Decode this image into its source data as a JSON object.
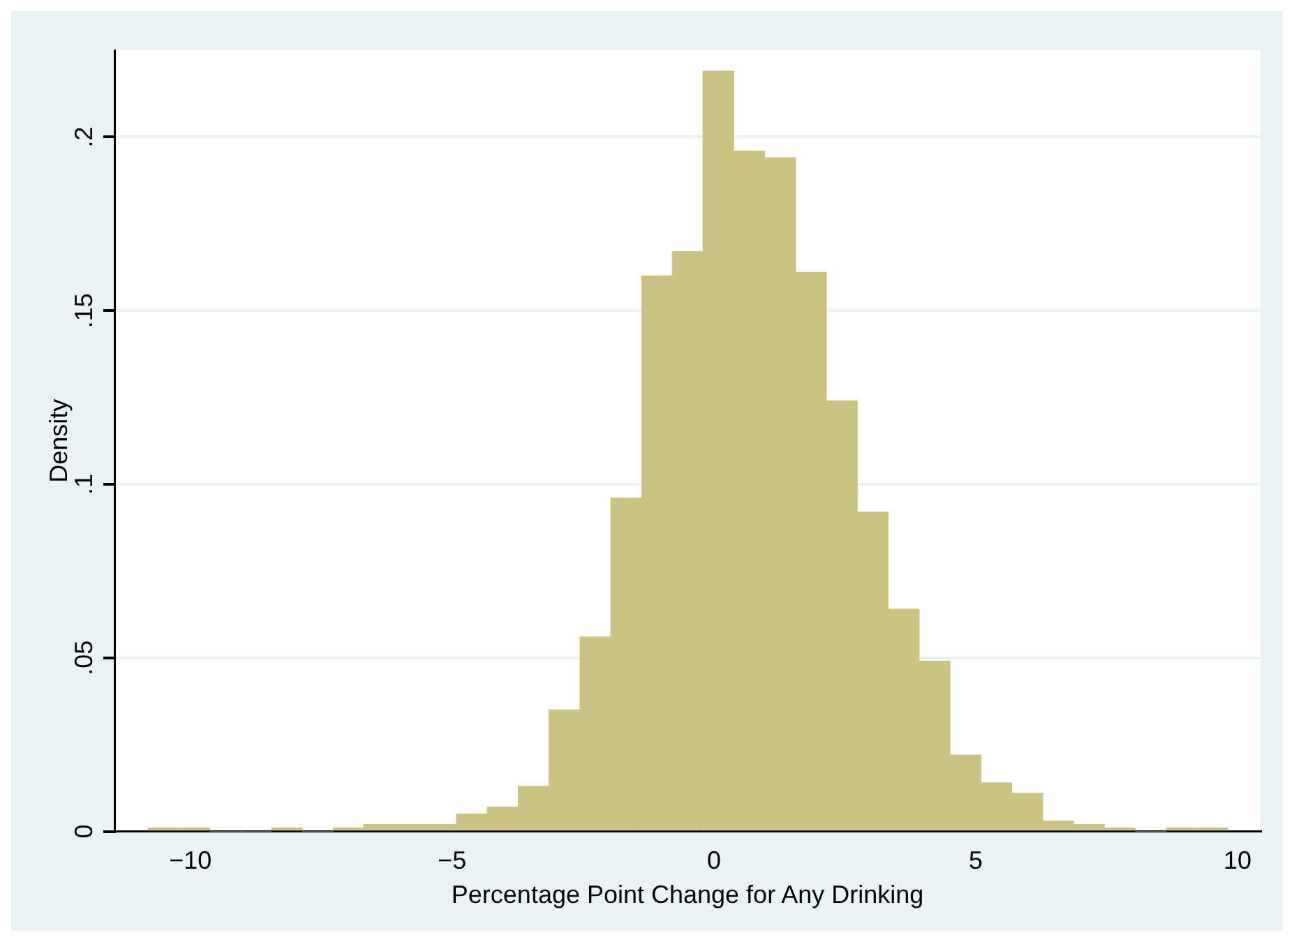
{
  "chart_data": {
    "type": "histogram",
    "xlabel": "Percentage Point Change for Any Drinking",
    "ylabel": "Density",
    "bins": [
      -10.81,
      -10.22,
      -9.63,
      -9.04,
      -8.45,
      -7.86,
      -7.27,
      -6.69,
      -6.1,
      -5.51,
      -4.92,
      -4.33,
      -3.74,
      -3.15,
      -2.56,
      -1.97,
      -1.38,
      -0.79,
      -0.21,
      0.38,
      0.97,
      1.56,
      2.15,
      2.74,
      3.33,
      3.92,
      4.51,
      5.1,
      5.69,
      6.28,
      6.87,
      7.46,
      8.05,
      8.64,
      9.23,
      9.81
    ],
    "values": [
      0.001,
      0.001,
      0,
      0,
      0.001,
      0,
      0.001,
      0.002,
      0.002,
      0.002,
      0.005,
      0.007,
      0.013,
      0.035,
      0.056,
      0.096,
      0.16,
      0.167,
      0.219,
      0.196,
      0.194,
      0.161,
      0.124,
      0.092,
      0.064,
      0.049,
      0.022,
      0.014,
      0.011,
      0.003,
      0.002,
      0.001,
      0,
      0.001,
      0.001
    ],
    "color": "#cbc382",
    "xlim": [
      -11.45,
      10.44
    ],
    "xticks": [
      {
        "value": -10,
        "label": "−10"
      },
      {
        "value": -5,
        "label": "−5"
      },
      0,
      5,
      10
    ],
    "ylim": [
      0,
      0.225
    ],
    "yticks": [
      0,
      {
        "value": 0.05,
        "label": ".05"
      },
      {
        "value": 0.1,
        "label": ".1"
      },
      {
        "value": 0.15,
        "label": ".15"
      },
      {
        "value": 0.2,
        "label": ".2"
      }
    ],
    "grid": "y",
    "legend": false
  }
}
